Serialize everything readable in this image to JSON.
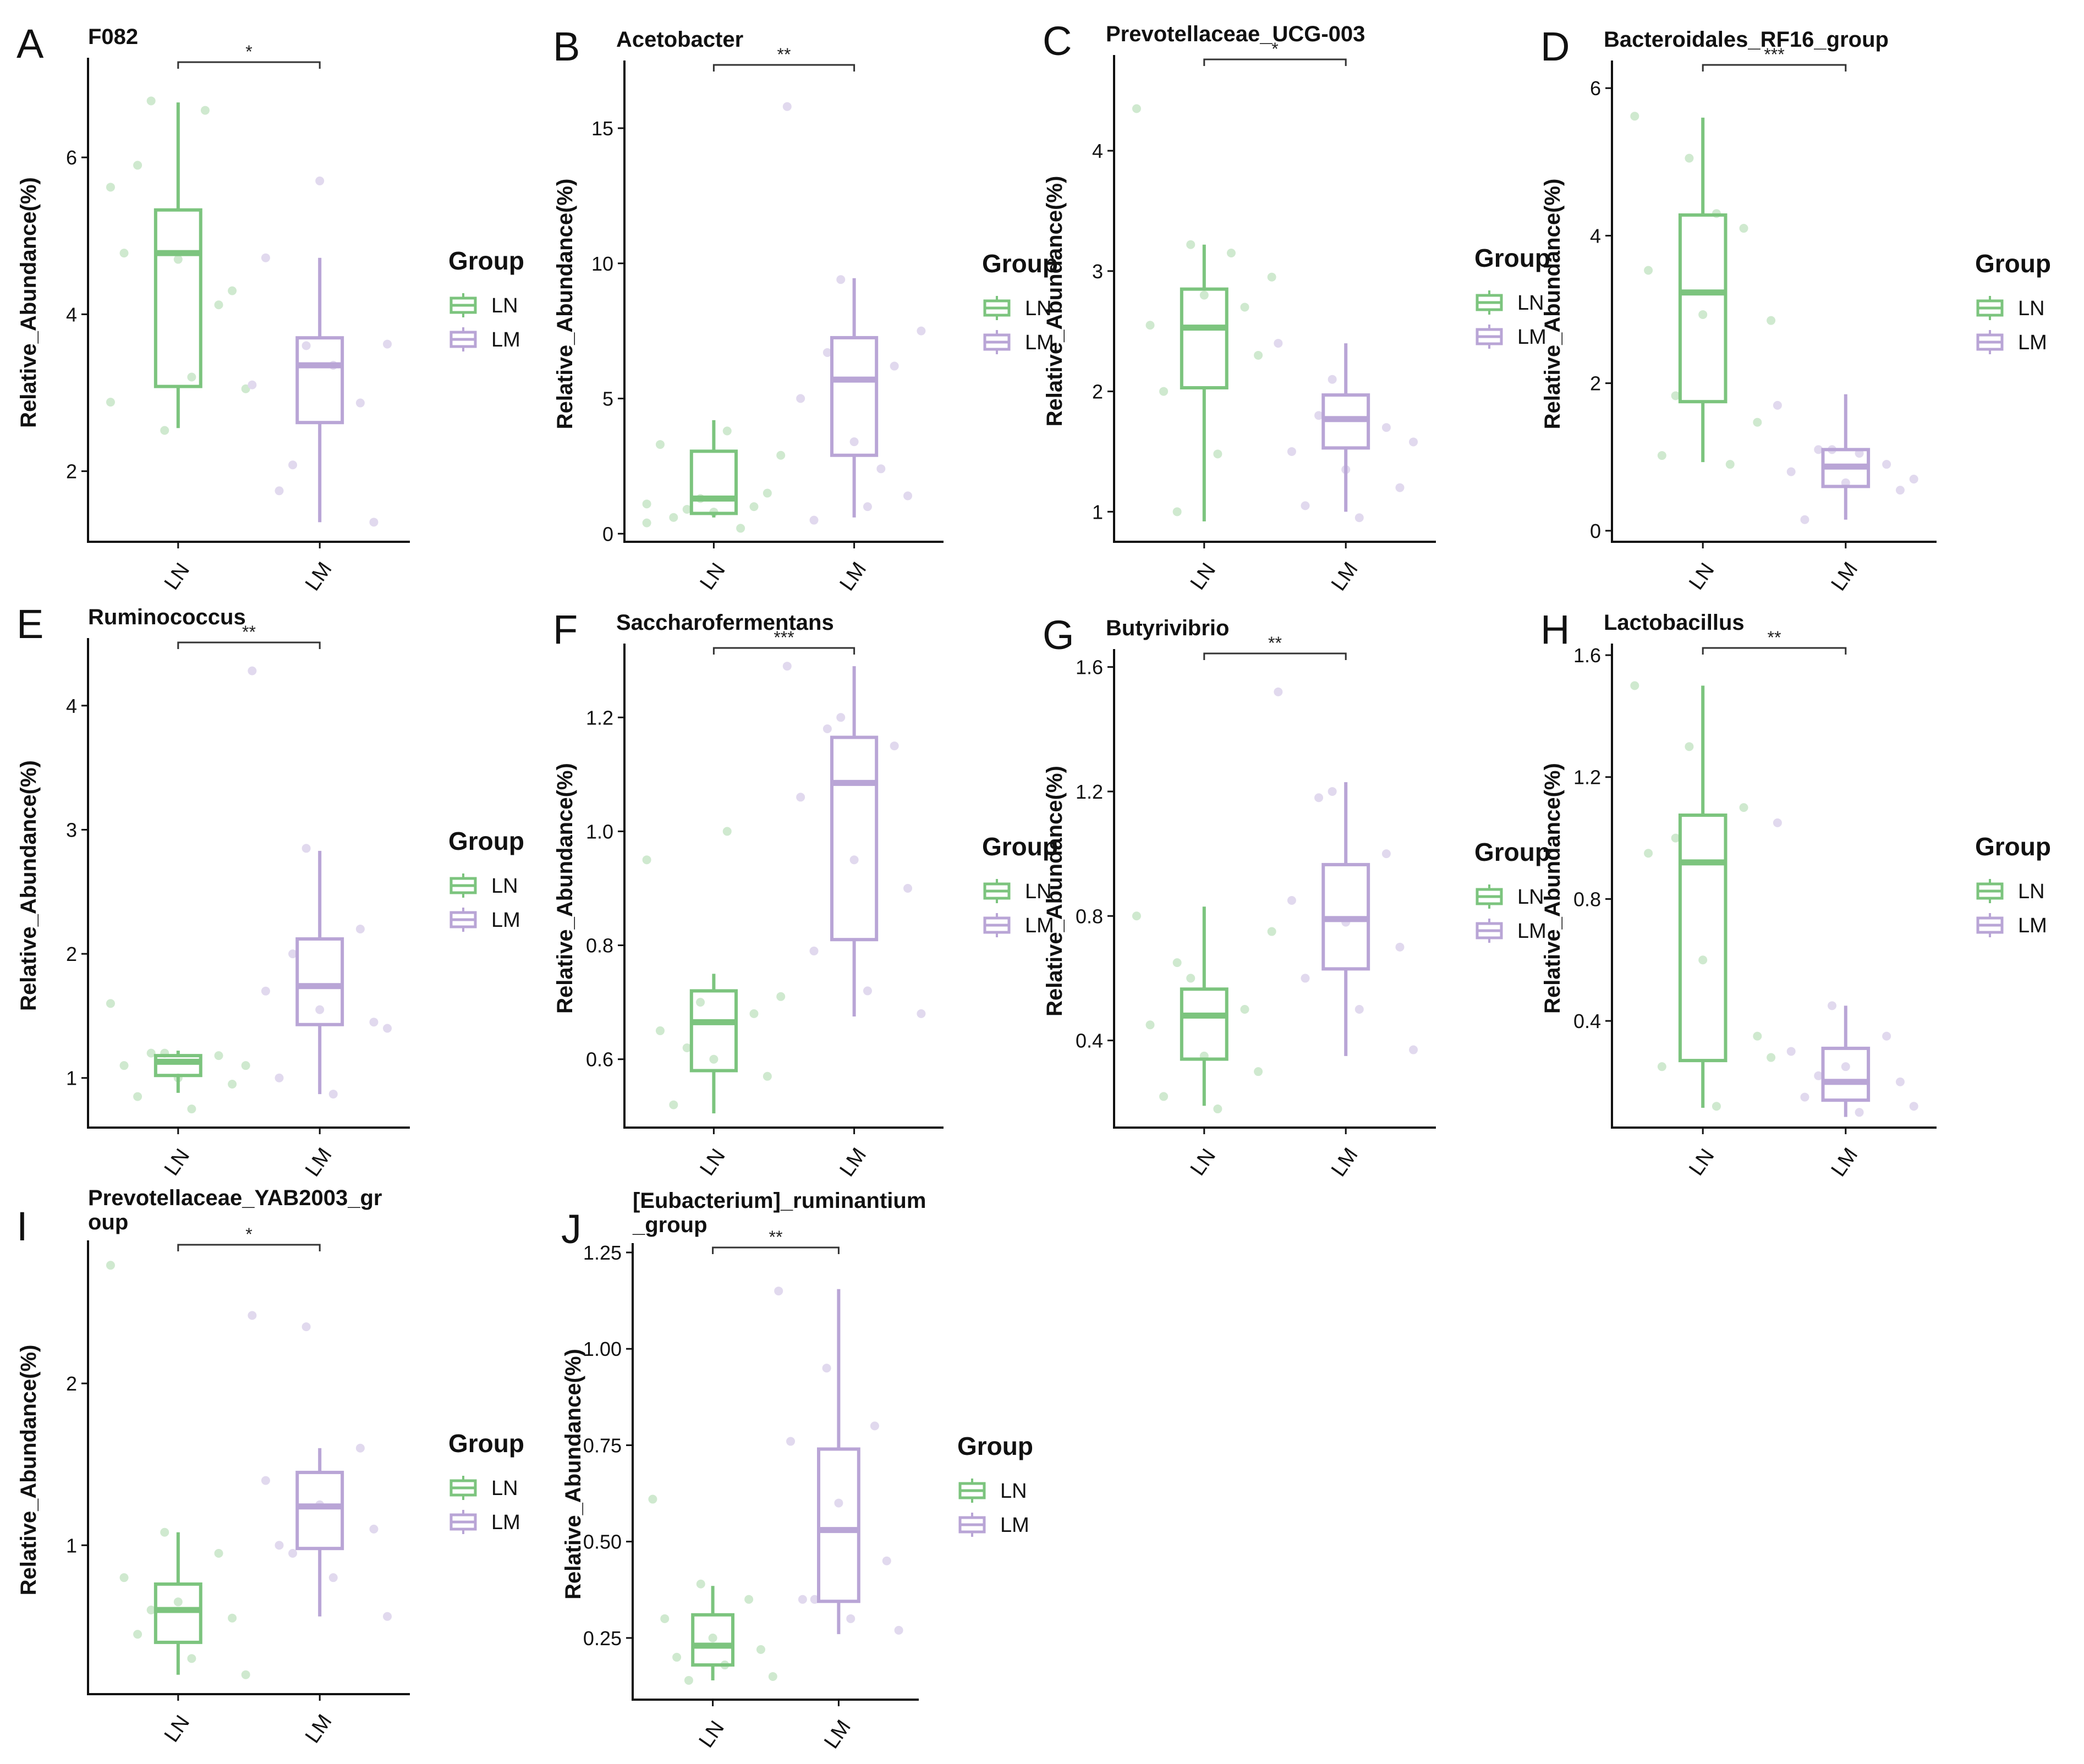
{
  "legend": {
    "title": "Group",
    "groups": [
      "LN",
      "LM"
    ]
  },
  "colors": {
    "LN": "#7cc47e",
    "LM": "#b9a5d6",
    "LN_point": "#cfe9cf",
    "LM_point": "#e1d9ee",
    "axis": "#111111"
  },
  "y_axis_label": "Relative_Abundance(%)",
  "chart_data": [
    {
      "id": "A",
      "type": "box",
      "title": "F082",
      "ylim": [
        1.1,
        7.2
      ],
      "yticks": [
        2,
        4,
        6
      ],
      "significance": "*",
      "categories": [
        "LN",
        "LM"
      ],
      "series": [
        {
          "name": "LN",
          "q1": 3.08,
          "median": 4.78,
          "q3": 5.33,
          "whisker_low": 2.55,
          "whisker_high": 6.7,
          "points": [
            2.88,
            2.52,
            4.12,
            4.78,
            4.7,
            4.3,
            5.9,
            3.2,
            3.05,
            6.72,
            6.6,
            5.62
          ]
        },
        {
          "name": "LM",
          "q1": 2.62,
          "median": 3.35,
          "q3": 3.7,
          "whisker_low": 1.35,
          "whisker_high": 4.72,
          "points": [
            3.1,
            3.6,
            2.87,
            4.72,
            5.7,
            1.35,
            1.75,
            3.35,
            3.62,
            2.08
          ]
        }
      ]
    },
    {
      "id": "B",
      "type": "box",
      "title": "Acetobacter",
      "ylim": [
        -0.3,
        17.3
      ],
      "yticks": [
        0,
        5,
        10,
        15
      ],
      "significance": "**",
      "categories": [
        "LN",
        "LM"
      ],
      "series": [
        {
          "name": "LN",
          "q1": 0.75,
          "median": 1.3,
          "q3": 3.05,
          "whisker_low": 0.6,
          "whisker_high": 4.2,
          "points": [
            0.4,
            1.3,
            1.0,
            3.3,
            0.8,
            1.5,
            0.6,
            3.8,
            2.9,
            0.9,
            0.2,
            1.1
          ]
        },
        {
          "name": "LM",
          "q1": 2.9,
          "median": 5.7,
          "q3": 7.25,
          "whisker_low": 0.6,
          "whisker_high": 9.45,
          "points": [
            15.8,
            9.4,
            6.2,
            5.0,
            3.4,
            1.4,
            0.5,
            1.0,
            7.5,
            6.7,
            2.4
          ]
        }
      ]
    },
    {
      "id": "C",
      "type": "box",
      "title": "Prevotellaceae_UCG-003",
      "ylim": [
        0.75,
        4.75
      ],
      "yticks": [
        1,
        2,
        3,
        4
      ],
      "significance": "*",
      "categories": [
        "LN",
        "LM"
      ],
      "series": [
        {
          "name": "LN",
          "q1": 2.03,
          "median": 2.53,
          "q3": 2.85,
          "whisker_low": 0.92,
          "whisker_high": 3.22,
          "points": [
            4.35,
            3.22,
            2.7,
            2.55,
            2.8,
            2.3,
            2.0,
            1.48,
            2.95,
            1.0,
            3.15
          ]
        },
        {
          "name": "LM",
          "q1": 1.53,
          "median": 1.77,
          "q3": 1.97,
          "whisker_low": 1.0,
          "whisker_high": 2.4,
          "points": [
            2.4,
            2.1,
            1.7,
            1.5,
            1.35,
            1.2,
            1.05,
            0.95,
            1.58,
            1.8
          ]
        }
      ]
    },
    {
      "id": "D",
      "type": "box",
      "title": "Bacteroidales_RF16_group",
      "ylim": [
        -0.15,
        6.3
      ],
      "yticks": [
        0,
        2,
        4,
        6
      ],
      "significance": "***",
      "categories": [
        "LN",
        "LM"
      ],
      "series": [
        {
          "name": "LN",
          "q1": 1.75,
          "median": 3.23,
          "q3": 4.28,
          "whisker_low": 0.93,
          "whisker_high": 5.6,
          "points": [
            5.62,
            5.05,
            4.1,
            3.53,
            2.93,
            1.47,
            1.02,
            4.3,
            2.85,
            1.83,
            0.9
          ]
        },
        {
          "name": "LM",
          "q1": 0.6,
          "median": 0.87,
          "q3": 1.1,
          "whisker_low": 0.15,
          "whisker_high": 1.85,
          "points": [
            1.7,
            1.1,
            0.9,
            0.8,
            0.65,
            0.55,
            0.15,
            1.05,
            0.7,
            1.1
          ]
        }
      ]
    },
    {
      "id": "E",
      "type": "box",
      "title": "Ruminococcus",
      "ylim": [
        0.6,
        4.5
      ],
      "yticks": [
        1,
        2,
        3,
        4
      ],
      "significance": "**",
      "categories": [
        "LN",
        "LM"
      ],
      "series": [
        {
          "name": "LN",
          "q1": 1.02,
          "median": 1.13,
          "q3": 1.18,
          "whisker_low": 0.88,
          "whisker_high": 1.22,
          "points": [
            1.6,
            1.2,
            1.18,
            1.1,
            1.0,
            0.95,
            0.85,
            0.75,
            1.1,
            1.2
          ]
        },
        {
          "name": "LM",
          "q1": 1.43,
          "median": 1.74,
          "q3": 2.12,
          "whisker_low": 0.87,
          "whisker_high": 2.83,
          "points": [
            4.28,
            2.85,
            2.2,
            1.7,
            1.55,
            1.45,
            1.0,
            0.87,
            1.4,
            2.0
          ]
        }
      ]
    },
    {
      "id": "F",
      "type": "box",
      "title": "Saccharofermentans",
      "ylim": [
        0.48,
        1.32
      ],
      "yticks": [
        0.6,
        0.8,
        1.0,
        1.2
      ],
      "significance": "***",
      "categories": [
        "LN",
        "LM"
      ],
      "series": [
        {
          "name": "LN",
          "q1": 0.58,
          "median": 0.665,
          "q3": 0.72,
          "whisker_low": 0.505,
          "whisker_high": 0.75,
          "points": [
            0.95,
            0.7,
            0.68,
            0.65,
            0.6,
            0.57,
            0.52,
            1.0,
            0.71,
            0.62
          ]
        },
        {
          "name": "LM",
          "q1": 0.81,
          "median": 1.085,
          "q3": 1.165,
          "whisker_low": 0.675,
          "whisker_high": 1.29,
          "points": [
            1.29,
            1.2,
            1.15,
            1.06,
            0.95,
            0.9,
            0.79,
            0.72,
            0.68,
            1.18
          ]
        }
      ]
    },
    {
      "id": "G",
      "type": "box",
      "title": "Butyrivibrio",
      "ylim": [
        0.12,
        1.64
      ],
      "yticks": [
        0.4,
        0.8,
        1.2,
        1.6
      ],
      "significance": "**",
      "categories": [
        "LN",
        "LM"
      ],
      "series": [
        {
          "name": "LN",
          "q1": 0.34,
          "median": 0.48,
          "q3": 0.565,
          "whisker_low": 0.19,
          "whisker_high": 0.83,
          "points": [
            0.8,
            0.6,
            0.5,
            0.45,
            0.35,
            0.3,
            0.22,
            0.18,
            0.75,
            0.65
          ]
        },
        {
          "name": "LM",
          "q1": 0.63,
          "median": 0.79,
          "q3": 0.965,
          "whisker_low": 0.35,
          "whisker_high": 1.23,
          "points": [
            1.52,
            1.2,
            1.0,
            0.85,
            0.78,
            0.7,
            0.6,
            0.5,
            0.37,
            1.18
          ]
        }
      ]
    },
    {
      "id": "H",
      "type": "box",
      "title": "Lactobacillus",
      "ylim": [
        0.05,
        1.62
      ],
      "yticks": [
        0.4,
        0.8,
        1.2,
        1.6
      ],
      "significance": "**",
      "categories": [
        "LN",
        "LM"
      ],
      "series": [
        {
          "name": "LN",
          "q1": 0.27,
          "median": 0.92,
          "q3": 1.075,
          "whisker_low": 0.115,
          "whisker_high": 1.5,
          "points": [
            1.5,
            1.3,
            1.1,
            0.95,
            0.6,
            0.35,
            0.25,
            0.12,
            0.28,
            1.0
          ]
        },
        {
          "name": "LM",
          "q1": 0.14,
          "median": 0.2,
          "q3": 0.31,
          "whisker_low": 0.085,
          "whisker_high": 0.45,
          "points": [
            1.05,
            0.45,
            0.35,
            0.3,
            0.25,
            0.2,
            0.15,
            0.1,
            0.12,
            0.22
          ]
        }
      ]
    },
    {
      "id": "I",
      "type": "box",
      "title": "Prevotellaceae_YAB2003_group",
      "title_lines": [
        "Prevotellaceae_YAB2003_gr",
        "oup"
      ],
      "ylim": [
        0.08,
        2.85
      ],
      "yticks": [
        1,
        2
      ],
      "significance": "*",
      "categories": [
        "LN",
        "LM"
      ],
      "series": [
        {
          "name": "LN",
          "q1": 0.4,
          "median": 0.6,
          "q3": 0.76,
          "whisker_low": 0.2,
          "whisker_high": 1.08,
          "points": [
            2.73,
            1.08,
            0.95,
            0.8,
            0.65,
            0.55,
            0.45,
            0.3,
            0.2,
            0.6
          ]
        },
        {
          "name": "LM",
          "q1": 0.98,
          "median": 1.24,
          "q3": 1.45,
          "whisker_low": 0.56,
          "whisker_high": 1.6,
          "points": [
            2.42,
            2.35,
            1.6,
            1.4,
            1.25,
            1.1,
            1.0,
            0.8,
            0.56,
            0.95
          ]
        }
      ]
    },
    {
      "id": "J",
      "type": "box",
      "title": "[Eubacterium]_ruminantium_group",
      "title_lines": [
        "[Eubacterium]_ruminantium",
        "_group"
      ],
      "ylim": [
        0.09,
        1.26
      ],
      "yticks": [
        0.25,
        0.5,
        0.75,
        1.0,
        1.25
      ],
      "significance": "**",
      "categories": [
        "LN",
        "LM"
      ],
      "series": [
        {
          "name": "LN",
          "q1": 0.18,
          "median": 0.23,
          "q3": 0.31,
          "whisker_low": 0.14,
          "whisker_high": 0.385,
          "points": [
            0.61,
            0.39,
            0.35,
            0.3,
            0.25,
            0.22,
            0.2,
            0.18,
            0.15,
            0.14
          ]
        },
        {
          "name": "LM",
          "q1": 0.345,
          "median": 0.53,
          "q3": 0.74,
          "whisker_low": 0.26,
          "whisker_high": 1.155,
          "points": [
            1.15,
            0.95,
            0.8,
            0.76,
            0.6,
            0.45,
            0.35,
            0.3,
            0.27,
            0.35
          ]
        }
      ]
    }
  ]
}
